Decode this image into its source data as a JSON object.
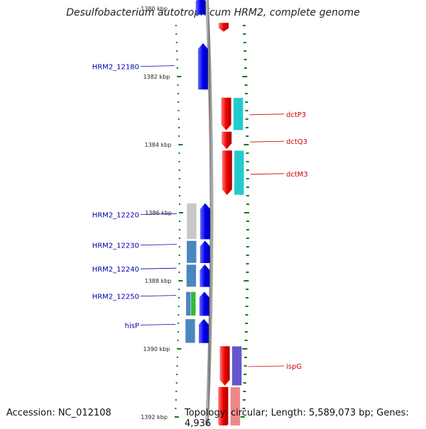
{
  "title": "Desulfobacterium autotrophicum HRM2, complete genome",
  "footer": {
    "accession": "Accession: NC_012108",
    "topology": "Topology: circular; Length: 5,589,073 bp; Genes: 4,936"
  },
  "colors": {
    "forward_cds": "#0000ee",
    "reverse_cds": "#ee0000",
    "cog_cyan": "#22cccc",
    "cog_steelblue": "#4a86c0",
    "cog_gray": "#c8c8c8",
    "cog_green": "#33bb33",
    "cog_purple": "#6655cc",
    "cog_pink": "#ee8888",
    "backbone": "#888888",
    "tick": "#117711",
    "left_label": "#0000aa",
    "right_label": "#cc0000"
  },
  "axis": {
    "unit": "kbp",
    "labels": [
      {
        "kbp": 1380,
        "text": "1380 kbp"
      },
      {
        "kbp": 1382,
        "text": "1382 kbp"
      },
      {
        "kbp": 1384,
        "text": "1384 kbp"
      },
      {
        "kbp": 1386,
        "text": "1386 kbp"
      },
      {
        "kbp": 1388,
        "text": "1388 kbp"
      },
      {
        "kbp": 1390,
        "text": "1390 kbp"
      },
      {
        "kbp": 1392,
        "text": "1392 kbp"
      }
    ]
  },
  "genes": [
    {
      "id": "g-top-fwd",
      "strand": "+",
      "start": 1379.6,
      "end": 1380.2,
      "label": ""
    },
    {
      "id": "g-top-rev",
      "strand": "-",
      "start": 1380.4,
      "end": 1380.7,
      "label": ""
    },
    {
      "id": "HRM2_12180",
      "strand": "+",
      "start": 1381.0,
      "end": 1382.4,
      "label": "HRM2_12180",
      "label_kbp": 1381.7
    },
    {
      "id": "dctP3",
      "strand": "-",
      "start": 1382.6,
      "end": 1383.6,
      "label": "dctP3",
      "label_kbp": 1383.1
    },
    {
      "id": "dctQ3",
      "strand": "-",
      "start": 1383.6,
      "end": 1384.15,
      "label": "dctQ3",
      "label_kbp": 1383.9
    },
    {
      "id": "dctM3",
      "strand": "-",
      "start": 1384.15,
      "end": 1385.5,
      "label": "dctM3",
      "label_kbp": 1384.85
    },
    {
      "id": "HRM2_12220",
      "strand": "+",
      "start": 1385.7,
      "end": 1386.8,
      "label": "HRM2_12220",
      "label_kbp": 1386.05
    },
    {
      "id": "HRM2_12230",
      "strand": "+",
      "start": 1386.8,
      "end": 1387.5,
      "label": "HRM2_12230",
      "label_kbp": 1386.95
    },
    {
      "id": "HRM2_12240",
      "strand": "+",
      "start": 1387.5,
      "end": 1388.2,
      "label": "HRM2_12240",
      "label_kbp": 1387.65
    },
    {
      "id": "HRM2_12250",
      "strand": "+",
      "start": 1388.3,
      "end": 1389.05,
      "label": "HRM2_12250",
      "label_kbp": 1388.45
    },
    {
      "id": "hisP",
      "strand": "+",
      "start": 1389.1,
      "end": 1389.85,
      "label": "hisP",
      "label_kbp": 1389.3
    },
    {
      "id": "ispG",
      "strand": "-",
      "start": 1389.9,
      "end": 1391.1,
      "label": "ispG",
      "label_kbp": 1390.5
    },
    {
      "id": "g-bottom-rev",
      "strand": "-",
      "start": 1391.1,
      "end": 1392.4,
      "label": ""
    }
  ],
  "cog_blocks": [
    {
      "for": "HRM2_12220",
      "lane": "left",
      "start": 1385.7,
      "end": 1386.8,
      "color": "#c8c8c8"
    },
    {
      "for": "HRM2_12230",
      "lane": "left",
      "start": 1386.8,
      "end": 1387.5,
      "color": "#4a86c0"
    },
    {
      "for": "HRM2_12240",
      "lane": "left",
      "start": 1387.5,
      "end": 1388.2,
      "color": "#4a86c0"
    },
    {
      "for": "HRM2_12250",
      "lane": "left",
      "start": 1388.3,
      "end": 1389.05,
      "color": "#4a86c0"
    },
    {
      "for": "HRM2_12250",
      "lane": "left2",
      "start": 1388.3,
      "end": 1389.05,
      "color": "#33bb33"
    },
    {
      "for": "hisP",
      "lane": "left",
      "start": 1389.1,
      "end": 1389.85,
      "color": "#4a86c0"
    },
    {
      "for": "dctP3",
      "lane": "right",
      "start": 1382.6,
      "end": 1383.6,
      "color": "#22cccc"
    },
    {
      "for": "dctM3",
      "lane": "right",
      "start": 1384.15,
      "end": 1385.5,
      "color": "#22cccc"
    },
    {
      "for": "ispG",
      "lane": "right",
      "start": 1389.9,
      "end": 1391.1,
      "color": "#6655cc"
    },
    {
      "for": "g-bottom-rev",
      "lane": "right",
      "start": 1391.1,
      "end": 1392.4,
      "color": "#ee8888"
    }
  ]
}
